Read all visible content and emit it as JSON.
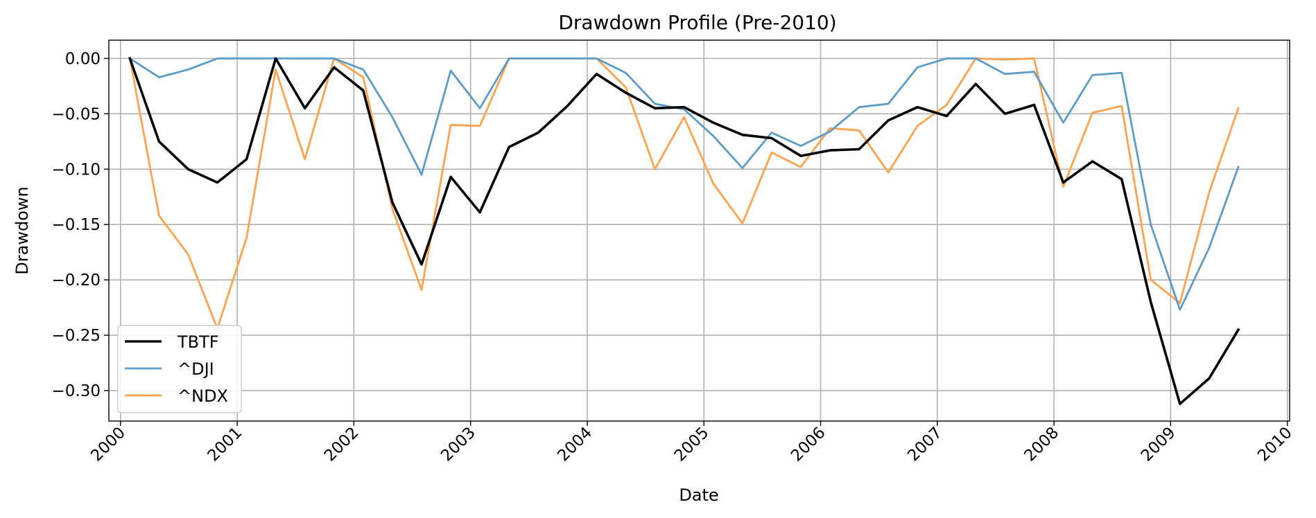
{
  "chart_data": {
    "type": "line",
    "title": "Drawdown Profile (Pre-2010)",
    "xlabel": "Date",
    "ylabel": "Drawdown",
    "xlim": [
      1999.9,
      2010.02
    ],
    "ylim": [
      -0.3275,
      0.0165
    ],
    "grid": true,
    "legend_position": "lower-left",
    "x_ticks": [
      2000,
      2001,
      2002,
      2003,
      2004,
      2005,
      2006,
      2007,
      2008,
      2009,
      2010
    ],
    "x_tick_labels": [
      "2000",
      "2001",
      "2002",
      "2003",
      "2004",
      "2005",
      "2006",
      "2007",
      "2008",
      "2009",
      "2010"
    ],
    "y_ticks": [
      0.0,
      -0.05,
      -0.1,
      -0.15,
      -0.2,
      -0.25,
      -0.3
    ],
    "y_tick_labels": [
      "0.00",
      "−0.05",
      "−0.10",
      "−0.15",
      "−0.20",
      "−0.25",
      "−0.30"
    ],
    "x": [
      2000.08,
      2000.33,
      2000.58,
      2000.83,
      2001.08,
      2001.33,
      2001.58,
      2001.83,
      2002.08,
      2002.33,
      2002.58,
      2002.83,
      2003.08,
      2003.33,
      2003.58,
      2003.83,
      2004.08,
      2004.33,
      2004.58,
      2004.83,
      2005.08,
      2005.33,
      2005.58,
      2005.83,
      2006.08,
      2006.33,
      2006.58,
      2006.83,
      2007.08,
      2007.33,
      2007.58,
      2007.83,
      2008.08,
      2008.33,
      2008.58,
      2008.83,
      2009.08,
      2009.33,
      2009.58
    ],
    "series": [
      {
        "name": "TBTF",
        "color": "#000000",
        "values": [
          0.0,
          -0.075,
          -0.1,
          -0.112,
          -0.091,
          0.0,
          -0.045,
          -0.008,
          -0.029,
          -0.13,
          -0.186,
          -0.107,
          -0.139,
          -0.08,
          -0.067,
          -0.043,
          -0.014,
          -0.031,
          -0.045,
          -0.044,
          -0.058,
          -0.069,
          -0.072,
          -0.088,
          -0.083,
          -0.082,
          -0.056,
          -0.044,
          -0.052,
          -0.023,
          -0.05,
          -0.042,
          -0.112,
          -0.093,
          -0.109,
          -0.22,
          -0.312,
          -0.289,
          -0.245
        ]
      },
      {
        "name": "^DJI",
        "color": "#5b9bc8",
        "values": [
          0.0,
          -0.017,
          -0.01,
          0.0,
          0.0,
          0.0,
          0.0,
          0.0,
          -0.01,
          -0.053,
          -0.105,
          -0.011,
          -0.045,
          0.0,
          0.0,
          0.0,
          0.0,
          -0.013,
          -0.041,
          -0.046,
          -0.07,
          -0.099,
          -0.067,
          -0.079,
          -0.066,
          -0.044,
          -0.041,
          -0.008,
          0.0,
          0.0,
          -0.014,
          -0.012,
          -0.058,
          -0.015,
          -0.013,
          -0.15,
          -0.227,
          -0.171,
          -0.098
        ]
      },
      {
        "name": "^NDX",
        "color": "#ffa24e",
        "values": [
          0.0,
          -0.142,
          -0.177,
          -0.244,
          -0.162,
          -0.01,
          -0.091,
          0.0,
          -0.017,
          -0.136,
          -0.209,
          -0.06,
          -0.061,
          0.0,
          0.0,
          0.0,
          0.0,
          -0.026,
          -0.1,
          -0.053,
          -0.113,
          -0.149,
          -0.085,
          -0.098,
          -0.063,
          -0.065,
          -0.103,
          -0.061,
          -0.042,
          0.0,
          -0.001,
          0.0,
          -0.116,
          -0.049,
          -0.043,
          -0.2,
          -0.221,
          -0.121,
          -0.045
        ]
      }
    ]
  }
}
